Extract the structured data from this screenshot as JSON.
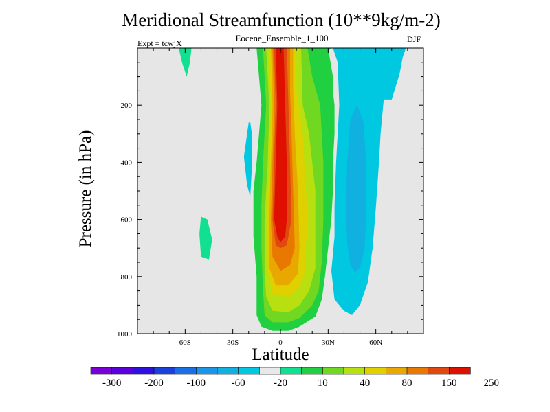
{
  "chart_data": {
    "type": "heatmap",
    "title": "Meridional Streamfunction (10**9kg/m-2)",
    "subtitle": "Eocene_Ensemble_1_100",
    "left_note": "Expt = tcwjX",
    "right_note": "DJF",
    "xlabel": "Latitude",
    "ylabel": "Pressure (in hPa)",
    "xlim": [
      -90,
      90
    ],
    "ylim": [
      1000,
      0
    ],
    "x_ticks": [
      {
        "value": -60,
        "label": "60S"
      },
      {
        "value": -30,
        "label": "30S"
      },
      {
        "value": 0,
        "label": "0"
      },
      {
        "value": 30,
        "label": "30N"
      },
      {
        "value": 60,
        "label": "60N"
      }
    ],
    "y_ticks": [
      {
        "value": 200,
        "label": "200"
      },
      {
        "value": 400,
        "label": "400"
      },
      {
        "value": 600,
        "label": "600"
      },
      {
        "value": 800,
        "label": "800"
      },
      {
        "value": 1000,
        "label": "1000"
      }
    ],
    "background_color": "#e6e6e6",
    "colorbar": {
      "colors": [
        "#7a00d8",
        "#5a00dc",
        "#2e10e0",
        "#1c40dc",
        "#1a6fe6",
        "#1a95e8",
        "#10b0e0",
        "#00c8e0",
        "#e8e8e8",
        "#10e090",
        "#20d040",
        "#70d820",
        "#b8e010",
        "#e0d000",
        "#e8a800",
        "#e87800",
        "#e04810",
        "#e01000"
      ],
      "labels": [
        "-300",
        "-200",
        "-100",
        "-60",
        "-20",
        "10",
        "40",
        "80",
        "150",
        "250"
      ]
    },
    "positive_cell": {
      "x_max": [
        0,
        1,
        2,
        3,
        4,
        5,
        6,
        7,
        8
      ],
      "fill_colors": [
        "#20d040",
        "#70d820",
        "#b8e010",
        "#e0d000",
        "#e8a800",
        "#e87800",
        "#e04810",
        "#e01000"
      ],
      "levels": [
        [
          [
            -15,
            0
          ],
          [
            -12,
            200
          ],
          [
            -15,
            400
          ],
          [
            -17,
            500
          ],
          [
            -17,
            660
          ],
          [
            -15,
            800
          ],
          [
            -15,
            935
          ],
          [
            -12,
            975
          ],
          [
            -5,
            990
          ],
          [
            5,
            990
          ],
          [
            12,
            975
          ],
          [
            22,
            940
          ],
          [
            26,
            880
          ],
          [
            28,
            800
          ],
          [
            30,
            700
          ],
          [
            32,
            600
          ],
          [
            33,
            500
          ],
          [
            33,
            400
          ],
          [
            34,
            300
          ],
          [
            34,
            200
          ],
          [
            33,
            150
          ],
          [
            33,
            100
          ],
          [
            30,
            0
          ]
        ],
        [
          [
            -11,
            0
          ],
          [
            -9,
            200
          ],
          [
            -11,
            400
          ],
          [
            -12,
            550
          ],
          [
            -12,
            700
          ],
          [
            -11,
            850
          ],
          [
            -10,
            935
          ],
          [
            -5,
            960
          ],
          [
            5,
            960
          ],
          [
            12,
            945
          ],
          [
            20,
            900
          ],
          [
            24,
            850
          ],
          [
            26,
            750
          ],
          [
            27,
            600
          ],
          [
            27,
            400
          ],
          [
            25,
            200
          ],
          [
            20,
            100
          ],
          [
            17,
            0
          ]
        ],
        [
          [
            -9,
            0
          ],
          [
            -7,
            200
          ],
          [
            -8,
            400
          ],
          [
            -10,
            600
          ],
          [
            -10,
            780
          ],
          [
            -9,
            870
          ],
          [
            -5,
            920
          ],
          [
            5,
            925
          ],
          [
            12,
            900
          ],
          [
            18,
            850
          ],
          [
            22,
            770
          ],
          [
            22,
            500
          ],
          [
            18,
            300
          ],
          [
            14,
            200
          ],
          [
            13,
            0
          ]
        ],
        [
          [
            -7,
            0
          ],
          [
            -6,
            200
          ],
          [
            -7,
            400
          ],
          [
            -8,
            580
          ],
          [
            -8,
            780
          ],
          [
            -5,
            860
          ],
          [
            5,
            870
          ],
          [
            12,
            840
          ],
          [
            15,
            790
          ],
          [
            17,
            600
          ],
          [
            14,
            300
          ],
          [
            10,
            150
          ],
          [
            10,
            0
          ]
        ],
        [
          [
            -6,
            0
          ],
          [
            -5,
            200
          ],
          [
            -6,
            400
          ],
          [
            -7,
            600
          ],
          [
            -7,
            770
          ],
          [
            -3,
            830
          ],
          [
            5,
            830
          ],
          [
            11,
            790
          ],
          [
            12,
            700
          ],
          [
            11,
            500
          ],
          [
            9,
            300
          ],
          [
            8,
            150
          ],
          [
            8,
            0
          ]
        ],
        [
          [
            -5,
            0
          ],
          [
            -4,
            200
          ],
          [
            -5,
            400
          ],
          [
            -6,
            600
          ],
          [
            -5,
            730
          ],
          [
            0,
            780
          ],
          [
            6,
            760
          ],
          [
            9,
            700
          ],
          [
            8,
            500
          ],
          [
            7,
            300
          ],
          [
            6,
            150
          ],
          [
            6,
            0
          ]
        ],
        [
          [
            -4,
            0
          ],
          [
            -3,
            200
          ],
          [
            -4,
            400
          ],
          [
            -5,
            600
          ],
          [
            -3,
            690
          ],
          [
            0,
            700
          ],
          [
            4,
            690
          ],
          [
            7,
            600
          ],
          [
            6,
            400
          ],
          [
            5,
            200
          ],
          [
            4,
            0
          ]
        ],
        [
          [
            -3,
            0
          ],
          [
            -2,
            200
          ],
          [
            -3,
            400
          ],
          [
            -4,
            600
          ],
          [
            -2,
            660
          ],
          [
            0,
            680
          ],
          [
            3,
            660
          ],
          [
            4,
            600
          ],
          [
            4,
            400
          ],
          [
            3,
            200
          ],
          [
            2,
            0
          ]
        ]
      ]
    },
    "negative_cells": [
      {
        "fill_colors": [
          "#00c8e0",
          "#10b0e0"
        ],
        "levels": [
          [
            [
              33,
              0
            ],
            [
              36,
              50
            ],
            [
              37,
              200
            ],
            [
              35,
              400
            ],
            [
              34,
              550
            ],
            [
              34,
              660
            ],
            [
              32,
              780
            ],
            [
              34,
              880
            ],
            [
              40,
              920
            ],
            [
              45,
              935
            ],
            [
              50,
              900
            ],
            [
              55,
              820
            ],
            [
              58,
              700
            ],
            [
              60,
              560
            ],
            [
              62,
              400
            ],
            [
              63,
              300
            ],
            [
              65,
              180
            ],
            [
              70,
              180
            ],
            [
              75,
              90
            ],
            [
              77,
              30
            ],
            [
              79,
              0
            ]
          ],
          [
            [
              44,
              250
            ],
            [
              42,
              400
            ],
            [
              41,
              550
            ],
            [
              42,
              680
            ],
            [
              44,
              760
            ],
            [
              47,
              785
            ],
            [
              50,
              770
            ],
            [
              53,
              700
            ],
            [
              54,
              550
            ],
            [
              54,
              400
            ],
            [
              52,
              250
            ],
            [
              48,
              200
            ]
          ]
        ]
      },
      {
        "fill_colors": [
          "#00c8e0"
        ],
        "levels": [
          [
            [
              -20,
              260
            ],
            [
              -21,
              300
            ],
            [
              -23,
              380
            ],
            [
              -21,
              480
            ],
            [
              -19,
              520
            ],
            [
              -18,
              420
            ],
            [
              -18,
              300
            ],
            [
              -19,
              260
            ]
          ]
        ]
      }
    ],
    "small_positive_cells": [
      {
        "fill_color": "#10e090",
        "levels": [
          [
            [
              -64,
              0
            ],
            [
              -62,
              50
            ],
            [
              -59,
              100
            ],
            [
              -57,
              50
            ],
            [
              -56,
              0
            ]
          ],
          [
            [
              -50,
              590
            ],
            [
              -51,
              650
            ],
            [
              -50,
              730
            ],
            [
              -45,
              740
            ],
            [
              -43,
              670
            ],
            [
              -46,
              600
            ]
          ]
        ]
      },
      {
        "fill_color": "#10e090",
        "levels": [
          [
            [
              25,
              0
            ],
            [
              25,
              50
            ],
            [
              30,
              10
            ],
            [
              32,
              0
            ]
          ]
        ]
      }
    ]
  }
}
